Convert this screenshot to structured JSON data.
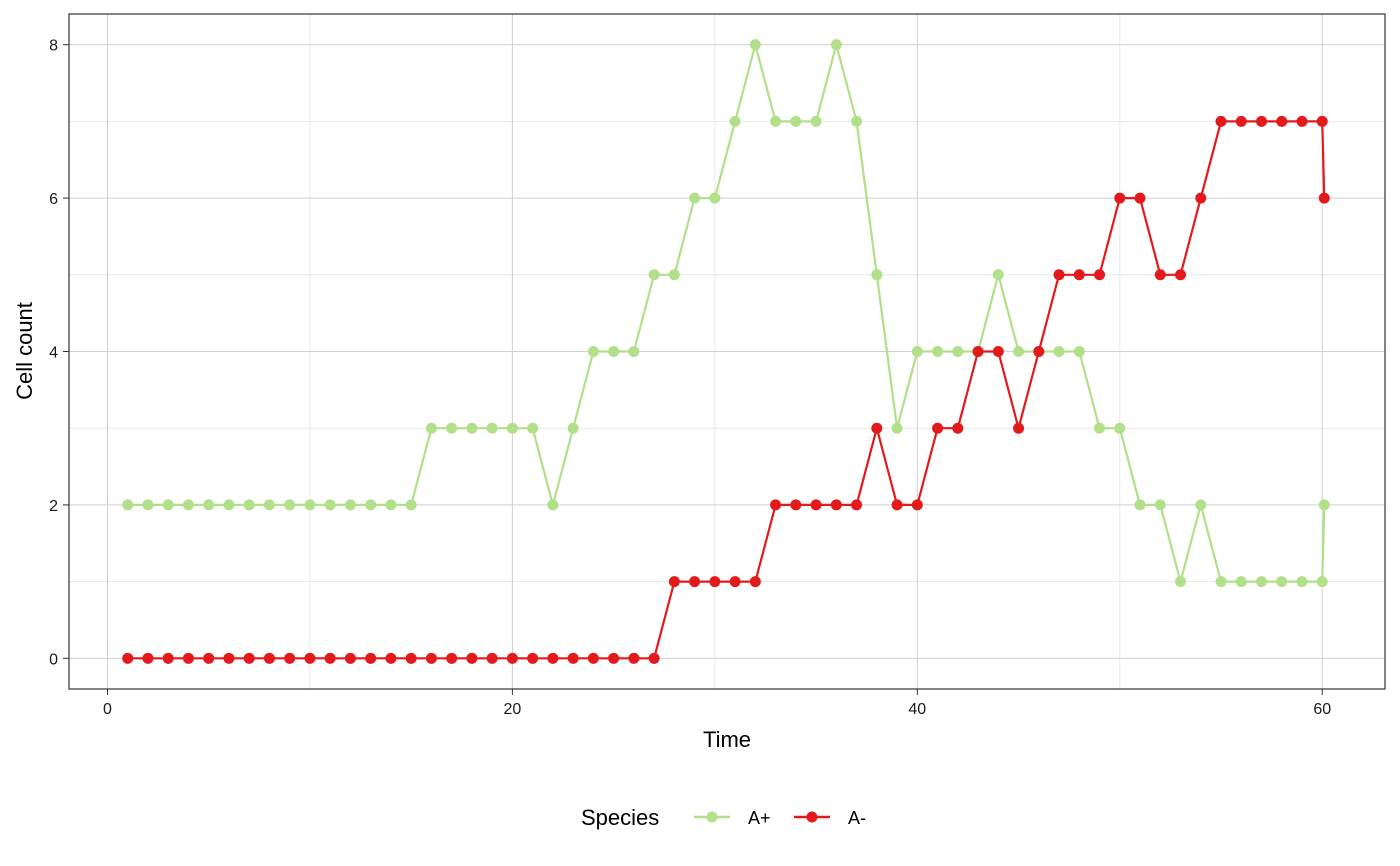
{
  "chart_data": {
    "type": "line",
    "title": "",
    "xlabel": "Time",
    "ylabel": "Cell count",
    "xlim": [
      -1.9,
      63.1
    ],
    "ylim": [
      -0.4,
      8.4
    ],
    "xticks": [
      0,
      20,
      40,
      60
    ],
    "yticks": [
      0,
      2,
      4,
      6,
      8
    ],
    "xtick_labels": [
      "0",
      "20",
      "40",
      "60"
    ],
    "ytick_labels": [
      "0",
      "2",
      "4",
      "6",
      "8"
    ],
    "grid": true,
    "legend": {
      "title": "Species",
      "position": "bottom"
    },
    "x": [
      1,
      2,
      3,
      4,
      5,
      6,
      7,
      8,
      9,
      10,
      11,
      12,
      13,
      14,
      15,
      16,
      17,
      18,
      19,
      20,
      21,
      22,
      23,
      24,
      25,
      26,
      27,
      28,
      29,
      30,
      31,
      32,
      33,
      34,
      35,
      36,
      37,
      38,
      39,
      40,
      41,
      42,
      43,
      44,
      45,
      46,
      47,
      48,
      49,
      50,
      51,
      52,
      53,
      54,
      55,
      56,
      57,
      58,
      59,
      60,
      60.1
    ],
    "series": [
      {
        "name": "A+",
        "color": "#b2df8a",
        "values": [
          2,
          2,
          2,
          2,
          2,
          2,
          2,
          2,
          2,
          2,
          2,
          2,
          2,
          2,
          2,
          3,
          3,
          3,
          3,
          3,
          3,
          2,
          3,
          4,
          4,
          4,
          5,
          5,
          6,
          6,
          7,
          8,
          7,
          7,
          7,
          8,
          7,
          5,
          3,
          4,
          4,
          4,
          4,
          5,
          4,
          4,
          4,
          4,
          3,
          3,
          2,
          2,
          1,
          2,
          1,
          1,
          1,
          1,
          1,
          1,
          2
        ]
      },
      {
        "name": "A-",
        "color": "#e31a1c",
        "values": [
          0,
          0,
          0,
          0,
          0,
          0,
          0,
          0,
          0,
          0,
          0,
          0,
          0,
          0,
          0,
          0,
          0,
          0,
          0,
          0,
          0,
          0,
          0,
          0,
          0,
          0,
          0,
          1,
          1,
          1,
          1,
          1,
          2,
          2,
          2,
          2,
          2,
          3,
          2,
          2,
          3,
          3,
          4,
          4,
          3,
          4,
          5,
          5,
          5,
          6,
          6,
          5,
          5,
          6,
          7,
          7,
          7,
          7,
          7,
          7,
          6
        ]
      }
    ]
  }
}
